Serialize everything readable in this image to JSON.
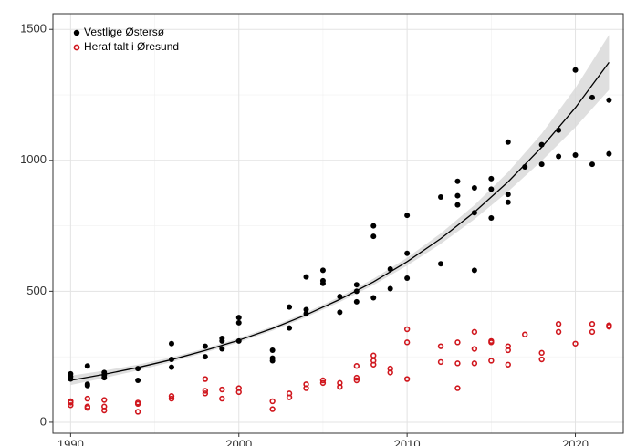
{
  "chart_data": {
    "type": "scatter",
    "xlim": [
      1988.95,
      2022.9
    ],
    "ylim": [
      -42,
      1560
    ],
    "xticks": [
      1990,
      2000,
      2010,
      2020
    ],
    "yticks": [
      0,
      500,
      1000,
      1500
    ],
    "xminor": [
      1995,
      2005,
      2015
    ],
    "yminor": [
      250,
      750,
      1250
    ],
    "grid": true,
    "legend": "top-left",
    "series": [
      {
        "name": "Vestlige Østersø",
        "color": "#000000",
        "marker": "filled",
        "x": [
          1990,
          1990,
          1990,
          1991,
          1991,
          1991,
          1992,
          1992,
          1992,
          1994,
          1994,
          1996,
          1996,
          1996,
          1998,
          1998,
          1999,
          1999,
          1999,
          2000,
          2000,
          2000,
          2002,
          2002,
          2002,
          2003,
          2003,
          2004,
          2004,
          2004,
          2005,
          2005,
          2005,
          2006,
          2006,
          2007,
          2007,
          2007,
          2008,
          2008,
          2008,
          2009,
          2009,
          2010,
          2010,
          2010,
          2012,
          2012,
          2013,
          2013,
          2013,
          2014,
          2014,
          2014,
          2015,
          2015,
          2015,
          2016,
          2016,
          2016,
          2017,
          2018,
          2018,
          2019,
          2019,
          2020,
          2020,
          2021,
          2021,
          2022,
          2022
        ],
        "values": [
          185,
          175,
          165,
          215,
          145,
          140,
          190,
          180,
          170,
          205,
          160,
          300,
          240,
          210,
          290,
          250,
          320,
          310,
          280,
          400,
          380,
          310,
          275,
          245,
          235,
          440,
          360,
          555,
          430,
          415,
          580,
          540,
          530,
          480,
          420,
          525,
          500,
          460,
          750,
          710,
          475,
          585,
          510,
          790,
          645,
          550,
          860,
          605,
          920,
          865,
          830,
          895,
          800,
          580,
          930,
          890,
          780,
          1070,
          870,
          840,
          975,
          1060,
          985,
          1115,
          1015,
          1345,
          1020,
          1240,
          985,
          1230,
          1025
        ]
      },
      {
        "name": "Heraf talt i Øresund",
        "color": "#d0161d",
        "marker": "open",
        "x": [
          1990,
          1990,
          1990,
          1991,
          1991,
          1991,
          1992,
          1992,
          1992,
          1994,
          1994,
          1994,
          1996,
          1996,
          1998,
          1998,
          1998,
          1999,
          1999,
          2000,
          2000,
          2002,
          2002,
          2003,
          2003,
          2004,
          2004,
          2005,
          2005,
          2006,
          2006,
          2007,
          2007,
          2007,
          2008,
          2008,
          2008,
          2009,
          2009,
          2010,
          2010,
          2010,
          2012,
          2012,
          2013,
          2013,
          2013,
          2014,
          2014,
          2014,
          2015,
          2015,
          2015,
          2016,
          2016,
          2016,
          2017,
          2018,
          2018,
          2019,
          2019,
          2020,
          2021,
          2021,
          2022,
          2022
        ],
        "values": [
          80,
          75,
          65,
          90,
          60,
          55,
          85,
          60,
          45,
          75,
          70,
          40,
          100,
          90,
          165,
          120,
          110,
          125,
          90,
          130,
          115,
          80,
          50,
          110,
          95,
          145,
          130,
          160,
          150,
          150,
          135,
          215,
          170,
          160,
          255,
          235,
          220,
          205,
          190,
          355,
          305,
          165,
          290,
          230,
          305,
          225,
          130,
          345,
          280,
          225,
          310,
          305,
          235,
          290,
          275,
          220,
          335,
          265,
          240,
          375,
          345,
          300,
          375,
          345,
          370,
          365
        ]
      }
    ],
    "fit": {
      "color": "#000000",
      "band_color": "#d9d9d9",
      "x": [
        1990,
        1992,
        1994,
        1996,
        1998,
        2000,
        2002,
        2004,
        2006,
        2008,
        2010,
        2012,
        2014,
        2016,
        2018,
        2020,
        2022
      ],
      "values": [
        160,
        183,
        209,
        239,
        274,
        313,
        358,
        410,
        469,
        536,
        613,
        701,
        802,
        918,
        1050,
        1201,
        1374
      ],
      "lower": [
        142,
        169,
        198,
        230,
        266,
        305,
        350,
        401,
        459,
        524,
        598,
        681,
        775,
        881,
        998,
        1126,
        1269
      ],
      "upper": [
        178,
        197,
        220,
        248,
        282,
        321,
        366,
        419,
        479,
        548,
        628,
        721,
        829,
        955,
        1102,
        1276,
        1479
      ]
    }
  }
}
